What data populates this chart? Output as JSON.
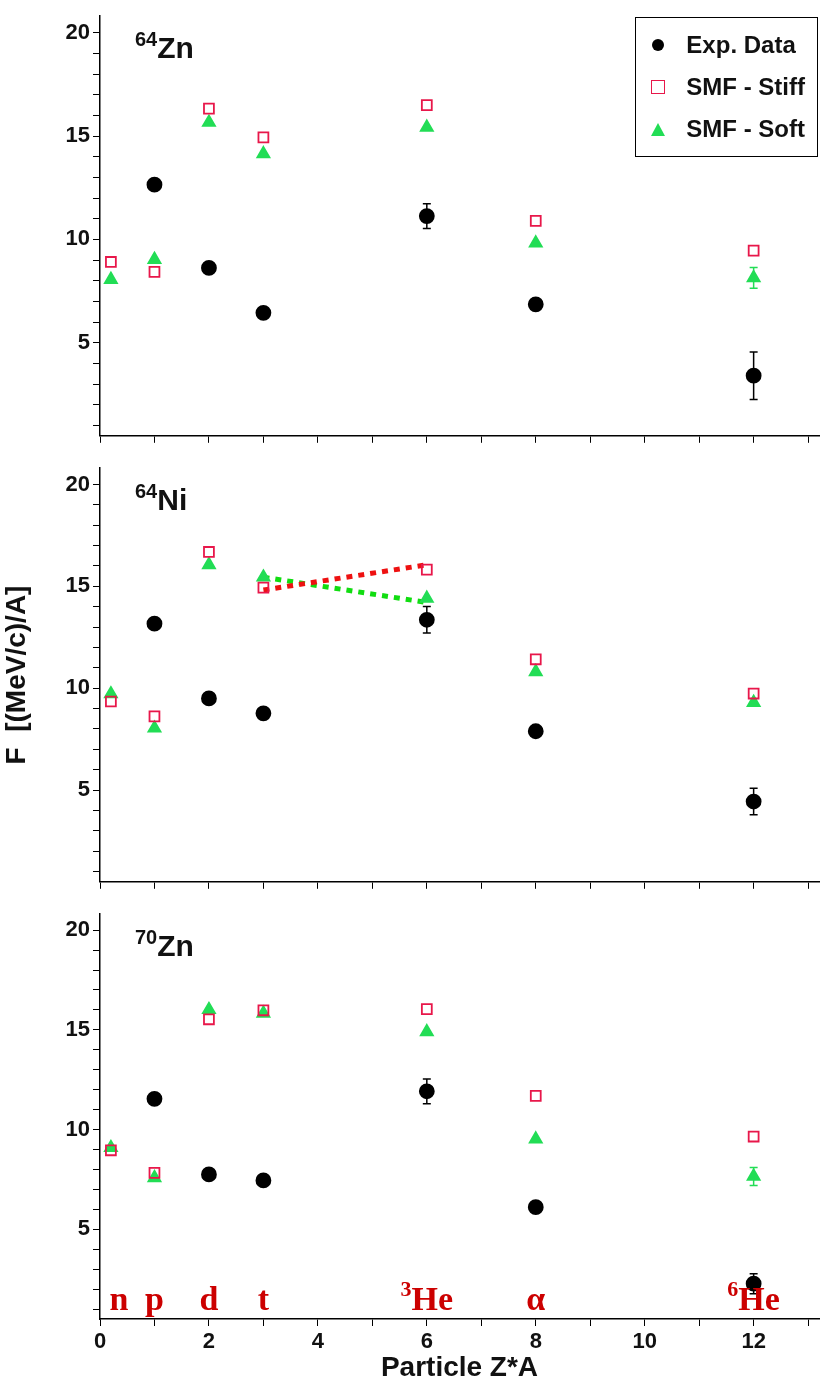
{
  "chart_data": [
    {
      "type": "scatter",
      "title": "$^{64}$Zn",
      "x": [
        0.2,
        1,
        2,
        3,
        6,
        8,
        12
      ],
      "xlim": [
        0,
        13.2
      ],
      "ylim": [
        0.5,
        20.8
      ],
      "xticks": [
        0,
        {
          "value": 1,
          "label": null
        },
        2,
        {
          "value": 3,
          "label": null
        },
        4,
        {
          "value": 5,
          "label": null
        },
        6,
        {
          "value": 7,
          "label": null
        },
        8,
        {
          "value": 9,
          "label": null
        },
        10,
        {
          "value": 11,
          "label": null
        },
        12,
        {
          "value": 13,
          "label": null
        }
      ],
      "yticks": [
        {
          "value": 1,
          "label": null
        },
        {
          "value": 2,
          "label": null
        },
        {
          "value": 3,
          "label": null
        },
        {
          "value": 4,
          "label": null
        },
        5,
        {
          "value": 6,
          "label": null
        },
        {
          "value": 7,
          "label": null
        },
        {
          "value": 8,
          "label": null
        },
        {
          "value": 9,
          "label": null
        },
        10,
        {
          "value": 11,
          "label": null
        },
        {
          "value": 12,
          "label": null
        },
        {
          "value": 13,
          "label": null
        },
        {
          "value": 14,
          "label": null
        },
        15,
        {
          "value": 16,
          "label": null
        },
        {
          "value": 17,
          "label": null
        },
        {
          "value": 18,
          "label": null
        },
        {
          "value": 19,
          "label": null
        },
        20
      ],
      "tick_labels": "y",
      "grid": false,
      "legend": "top right",
      "series": [
        {
          "name": "Exp. Data",
          "color": "#000000",
          "marker": "circle",
          "values": [
            null,
            12.65,
            8.62,
            6.45,
            11.13,
            6.86,
            3.41
          ],
          "errors": [
            null,
            null,
            null,
            null,
            0.6,
            null,
            1.15
          ]
        },
        {
          "name": "SMF - Stiff",
          "color": "#e8174a",
          "marker": "square",
          "values": [
            8.91,
            8.43,
            16.33,
            14.94,
            16.5,
            10.9,
            9.46
          ]
        },
        {
          "name": "SMF - Soft",
          "color": "#22dd55",
          "marker": "triangle",
          "values": [
            8.06,
            9.03,
            15.66,
            14.14,
            15.42,
            9.82,
            8.14
          ],
          "errors": [
            null,
            null,
            null,
            null,
            null,
            null,
            0.5
          ]
        }
      ]
    },
    {
      "type": "scatter",
      "title": "$^{64}$Ni",
      "ylabel": "F  [(MeV/c)/A]",
      "x": [
        0.2,
        1,
        2,
        3,
        6,
        8,
        12
      ],
      "xlim": [
        0,
        13.2
      ],
      "ylim": [
        0.5,
        20.8
      ],
      "xticks": [
        0,
        {
          "value": 1,
          "label": null
        },
        2,
        {
          "value": 3,
          "label": null
        },
        4,
        {
          "value": 5,
          "label": null
        },
        6,
        {
          "value": 7,
          "label": null
        },
        8,
        {
          "value": 9,
          "label": null
        },
        10,
        {
          "value": 11,
          "label": null
        },
        12,
        {
          "value": 13,
          "label": null
        }
      ],
      "yticks": [
        {
          "value": 1,
          "label": null
        },
        {
          "value": 2,
          "label": null
        },
        {
          "value": 3,
          "label": null
        },
        {
          "value": 4,
          "label": null
        },
        5,
        {
          "value": 6,
          "label": null
        },
        {
          "value": 7,
          "label": null
        },
        {
          "value": 8,
          "label": null
        },
        {
          "value": 9,
          "label": null
        },
        10,
        {
          "value": 11,
          "label": null
        },
        {
          "value": 12,
          "label": null
        },
        {
          "value": 13,
          "label": null
        },
        {
          "value": 14,
          "label": null
        },
        15,
        {
          "value": 16,
          "label": null
        },
        {
          "value": 17,
          "label": null
        },
        {
          "value": 18,
          "label": null
        },
        {
          "value": 19,
          "label": null
        },
        20
      ],
      "tick_labels": "y",
      "grid": false,
      "series": [
        {
          "color": "#000000",
          "marker": "circle",
          "values": [
            null,
            13.17,
            9.5,
            8.77,
            13.36,
            7.89,
            4.44
          ],
          "errors": [
            null,
            null,
            null,
            null,
            0.65,
            null,
            0.65
          ]
        },
        {
          "color": "#e8174a",
          "marker": "square",
          "values": [
            9.35,
            8.62,
            16.69,
            14.94,
            15.82,
            11.42,
            9.74
          ]
        },
        {
          "color": "#22dd55",
          "marker": "triangle",
          "values": [
            9.72,
            8.04,
            16.06,
            15.45,
            14.41,
            10.81,
            9.3
          ]
        },
        {
          "type": "line",
          "color": "#ee1111",
          "marker": "none",
          "line_style": "dotted",
          "values": [
            null,
            null,
            null,
            14.82,
            16.06,
            null,
            null
          ]
        },
        {
          "type": "line",
          "color": "#11dd11",
          "marker": "none",
          "line_style": "dotted",
          "values": [
            null,
            null,
            null,
            15.45,
            14.21,
            null,
            null
          ]
        }
      ]
    },
    {
      "type": "scatter",
      "title": "$^{70}$Zn",
      "xlabel": "Particle Z*A",
      "x": [
        0.2,
        1,
        2,
        3,
        6,
        8,
        12
      ],
      "xlim": [
        0,
        13.2
      ],
      "ylim": [
        0.5,
        20.8
      ],
      "xticks": [
        0,
        {
          "value": 1,
          "label": null
        },
        2,
        {
          "value": 3,
          "label": null
        },
        4,
        {
          "value": 5,
          "label": null
        },
        6,
        {
          "value": 7,
          "label": null
        },
        8,
        {
          "value": 9,
          "label": null
        },
        10,
        {
          "value": 11,
          "label": null
        },
        12,
        {
          "value": 13,
          "label": null
        }
      ],
      "yticks": [
        {
          "value": 1,
          "label": null
        },
        {
          "value": 2,
          "label": null
        },
        {
          "value": 3,
          "label": null
        },
        {
          "value": 4,
          "label": null
        },
        5,
        {
          "value": 6,
          "label": null
        },
        {
          "value": 7,
          "label": null
        },
        {
          "value": 8,
          "label": null
        },
        {
          "value": 9,
          "label": null
        },
        10,
        {
          "value": 11,
          "label": null
        },
        {
          "value": 12,
          "label": null
        },
        {
          "value": 13,
          "label": null
        },
        {
          "value": 14,
          "label": null
        },
        15,
        {
          "value": 16,
          "label": null
        },
        {
          "value": 17,
          "label": null
        },
        {
          "value": 18,
          "label": null
        },
        {
          "value": 19,
          "label": null
        },
        20
      ],
      "grid": false,
      "annotations": [
        "n",
        "p",
        "d",
        "t",
        "$^{3}$He",
        "α",
        "$^{6}$He"
      ],
      "series": [
        {
          "color": "#000000",
          "marker": "circle",
          "values": [
            null,
            11.54,
            7.75,
            7.45,
            11.92,
            6.11,
            2.27
          ],
          "errors": [
            null,
            null,
            null,
            null,
            0.62,
            null,
            0.5
          ]
        },
        {
          "color": "#e8174a",
          "marker": "square",
          "values": [
            8.96,
            7.83,
            15.53,
            15.98,
            16.04,
            11.69,
            9.65
          ]
        },
        {
          "color": "#22dd55",
          "marker": "triangle",
          "values": [
            9.09,
            7.58,
            16.01,
            15.83,
            14.9,
            9.52,
            7.65
          ],
          "errors": [
            null,
            null,
            null,
            null,
            null,
            null,
            0.45
          ]
        }
      ]
    }
  ]
}
